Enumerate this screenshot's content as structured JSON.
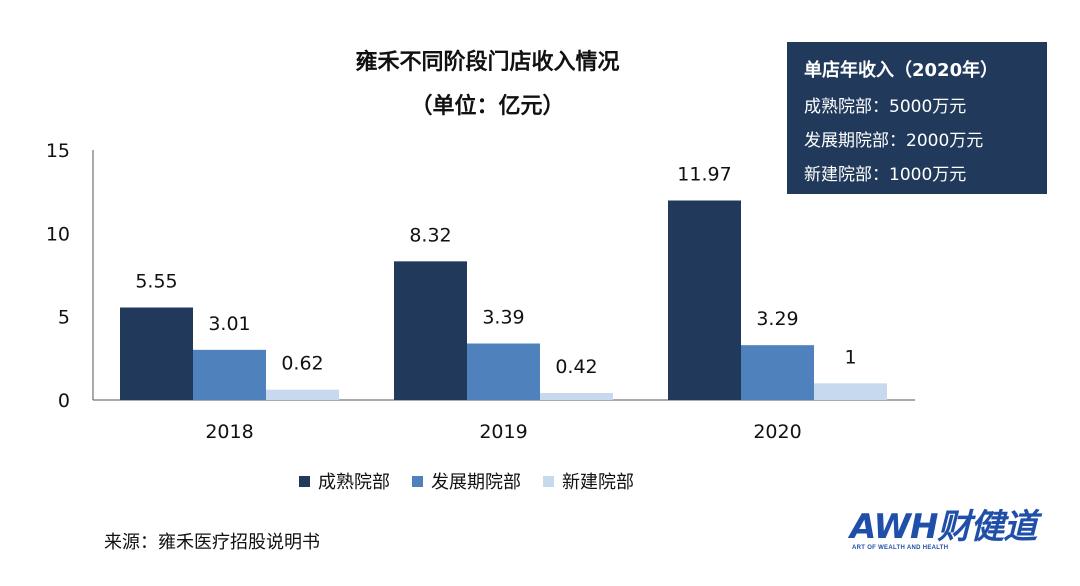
{
  "chart_data": {
    "type": "bar",
    "title": "雍禾不同阶段门店收入情况",
    "subtitle": "（单位：亿元）",
    "categories": [
      "2018",
      "2019",
      "2020"
    ],
    "series": [
      {
        "name": "成熟院部",
        "color": "#213a5c",
        "values": [
          5.55,
          8.32,
          11.97
        ]
      },
      {
        "name": "发展期院部",
        "color": "#4f81bd",
        "values": [
          3.01,
          3.39,
          3.29
        ]
      },
      {
        "name": "新建院部",
        "color": "#c7d9ee",
        "values": [
          0.62,
          0.42,
          1
        ]
      }
    ],
    "ylim": [
      0,
      15
    ],
    "yticks": [
      "0",
      "5",
      "10",
      "15"
    ],
    "data_labels": [
      [
        "5.55",
        "8.32",
        "11.97"
      ],
      [
        "3.01",
        "3.39",
        "3.29"
      ],
      [
        "0.62",
        "0.42",
        "1"
      ]
    ],
    "grid": false,
    "legend_position": "bottom"
  },
  "info_box": {
    "title": "单店年收入（2020年）",
    "lines": [
      "成熟院部：5000万元",
      "发展期院部：2000万元",
      "新建院部：1000万元"
    ]
  },
  "source": "来源：雍禾医疗招股说明书",
  "logo": {
    "main": "AWH财健道",
    "sub": "ART OF WEALTH AND HEALTH"
  }
}
